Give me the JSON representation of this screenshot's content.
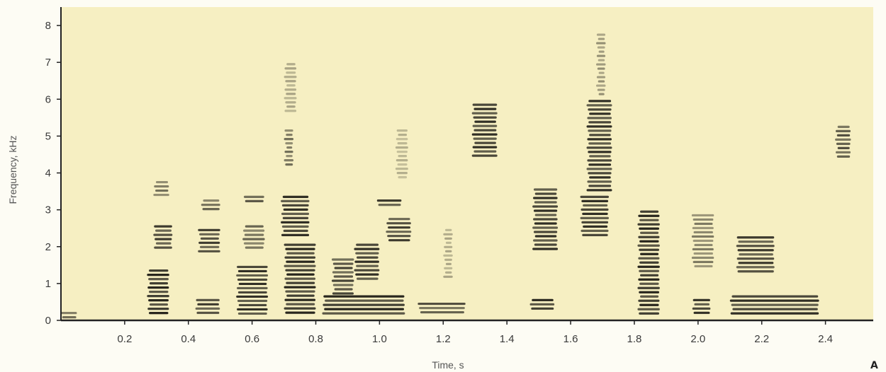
{
  "chart_data": {
    "type": "heatmap",
    "subtype": "spectrogram",
    "title": "",
    "xlabel": "Time, s",
    "ylabel": "Frequency, kHz",
    "panel_label": "A",
    "xlim": [
      0,
      2.55
    ],
    "ylim": [
      0,
      8.5
    ],
    "xticks": [
      "0.2",
      "0.4",
      "0.6",
      "0.8",
      "1.0",
      "1.2",
      "1.4",
      "1.6",
      "1.8",
      "2.0",
      "2.2",
      "2.4"
    ],
    "yticks": [
      "0",
      "1",
      "2",
      "3",
      "4",
      "5",
      "6",
      "7",
      "8"
    ],
    "background_color": "#f6efc2",
    "ink_color": "#1c1a14",
    "regions": [
      {
        "t0": 0.0,
        "t1": 0.05,
        "f0": 0.0,
        "f1": 0.25,
        "intensity": 0.7
      },
      {
        "t0": 0.27,
        "t1": 0.34,
        "f0": 0.1,
        "f1": 1.4,
        "intensity": 0.95
      },
      {
        "t0": 0.29,
        "t1": 0.35,
        "f0": 1.9,
        "f1": 2.6,
        "intensity": 0.85
      },
      {
        "t0": 0.29,
        "t1": 0.34,
        "f0": 3.3,
        "f1": 3.8,
        "intensity": 0.6
      },
      {
        "t0": 0.42,
        "t1": 0.5,
        "f0": 0.1,
        "f1": 0.6,
        "intensity": 0.85
      },
      {
        "t0": 0.43,
        "t1": 0.5,
        "f0": 1.8,
        "f1": 2.5,
        "intensity": 0.85
      },
      {
        "t0": 0.44,
        "t1": 0.5,
        "f0": 2.9,
        "f1": 3.3,
        "intensity": 0.65
      },
      {
        "t0": 0.55,
        "t1": 0.65,
        "f0": 0.1,
        "f1": 1.5,
        "intensity": 0.9
      },
      {
        "t0": 0.57,
        "t1": 0.64,
        "f0": 1.8,
        "f1": 2.6,
        "intensity": 0.65
      },
      {
        "t0": 0.57,
        "t1": 0.64,
        "f0": 3.1,
        "f1": 3.4,
        "intensity": 0.8
      },
      {
        "t0": 0.7,
        "t1": 0.8,
        "f0": 0.1,
        "f1": 2.1,
        "intensity": 0.95
      },
      {
        "t0": 0.69,
        "t1": 0.78,
        "f0": 2.2,
        "f1": 3.4,
        "intensity": 0.9
      },
      {
        "t0": 0.7,
        "t1": 0.73,
        "f0": 4.1,
        "f1": 5.2,
        "intensity": 0.6
      },
      {
        "t0": 0.7,
        "t1": 0.74,
        "f0": 5.6,
        "f1": 7.0,
        "intensity": 0.35
      },
      {
        "t0": 0.82,
        "t1": 1.08,
        "f0": 0.1,
        "f1": 0.7,
        "intensity": 0.95
      },
      {
        "t0": 0.85,
        "t1": 0.92,
        "f0": 0.6,
        "f1": 1.7,
        "intensity": 0.8
      },
      {
        "t0": 0.92,
        "t1": 1.0,
        "f0": 1.0,
        "f1": 2.1,
        "intensity": 0.9
      },
      {
        "t0": 0.99,
        "t1": 1.07,
        "f0": 3.0,
        "f1": 3.3,
        "intensity": 0.85
      },
      {
        "t0": 1.02,
        "t1": 1.1,
        "f0": 2.1,
        "f1": 2.8,
        "intensity": 0.85
      },
      {
        "t0": 1.05,
        "t1": 1.09,
        "f0": 3.8,
        "f1": 5.2,
        "intensity": 0.3
      },
      {
        "t0": 1.12,
        "t1": 1.27,
        "f0": 0.1,
        "f1": 0.5,
        "intensity": 0.75
      },
      {
        "t0": 1.2,
        "t1": 1.23,
        "f0": 1.1,
        "f1": 2.5,
        "intensity": 0.35
      },
      {
        "t0": 1.29,
        "t1": 1.37,
        "f0": 4.3,
        "f1": 5.9,
        "intensity": 0.9
      },
      {
        "t0": 1.47,
        "t1": 1.55,
        "f0": 0.2,
        "f1": 0.6,
        "intensity": 0.95
      },
      {
        "t0": 1.48,
        "t1": 1.56,
        "f0": 1.8,
        "f1": 3.6,
        "intensity": 0.9
      },
      {
        "t0": 1.63,
        "t1": 1.72,
        "f0": 2.2,
        "f1": 3.4,
        "intensity": 0.9
      },
      {
        "t0": 1.65,
        "t1": 1.73,
        "f0": 3.4,
        "f1": 6.0,
        "intensity": 0.9
      },
      {
        "t0": 1.68,
        "t1": 1.71,
        "f0": 6.0,
        "f1": 7.8,
        "intensity": 0.45
      },
      {
        "t0": 1.81,
        "t1": 1.88,
        "f0": 0.1,
        "f1": 3.0,
        "intensity": 0.95
      },
      {
        "t0": 1.98,
        "t1": 2.04,
        "f0": 0.1,
        "f1": 0.6,
        "intensity": 0.9
      },
      {
        "t0": 1.98,
        "t1": 2.05,
        "f0": 1.4,
        "f1": 2.9,
        "intensity": 0.55
      },
      {
        "t0": 2.1,
        "t1": 2.38,
        "f0": 0.1,
        "f1": 0.7,
        "intensity": 0.9
      },
      {
        "t0": 2.12,
        "t1": 2.24,
        "f0": 1.2,
        "f1": 2.3,
        "intensity": 0.85
      },
      {
        "t0": 2.43,
        "t1": 2.48,
        "f0": 4.3,
        "f1": 5.3,
        "intensity": 0.75
      }
    ]
  }
}
